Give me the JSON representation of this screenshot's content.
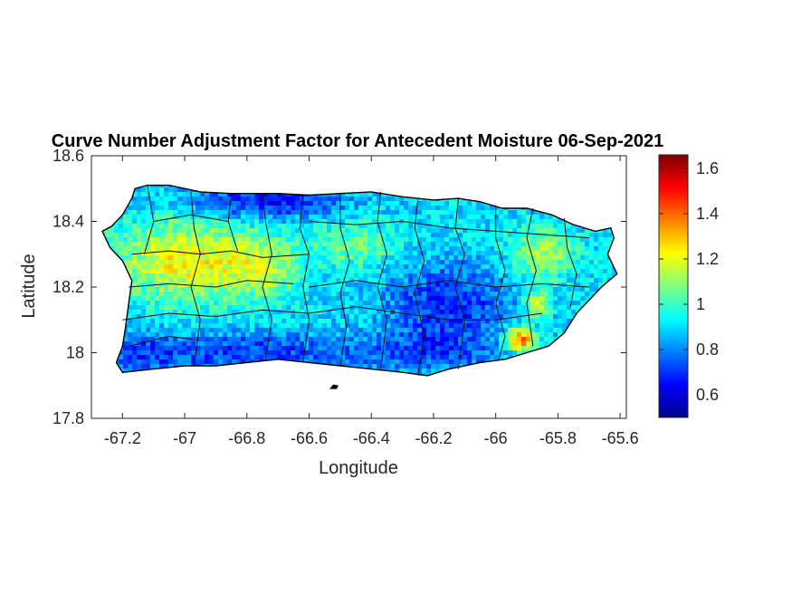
{
  "chart_data": {
    "type": "heatmap",
    "title": "Curve Number Adjustment Factor for Antecedent Moisture 06-Sep-2021",
    "xlabel": "Longitude",
    "ylabel": "Latitude",
    "xlim": [
      -67.3,
      -65.58
    ],
    "ylim": [
      17.8,
      18.6
    ],
    "x_ticks": [
      -67.2,
      -67,
      -66.8,
      -66.6,
      -66.4,
      -66.2,
      -66,
      -65.8,
      -65.6
    ],
    "x_tick_labels": [
      "-67.2",
      "-67",
      "-66.8",
      "-66.6",
      "-66.4",
      "-66.2",
      "-66",
      "-65.8",
      "-65.6"
    ],
    "y_ticks": [
      17.8,
      18,
      18.2,
      18.4,
      18.6
    ],
    "y_tick_labels": [
      "17.8",
      "18",
      "18.2",
      "18.4",
      "18.6"
    ],
    "colorbar": {
      "colormap": "jet",
      "limits": [
        0.5,
        1.66
      ],
      "ticks": [
        0.6,
        0.8,
        1,
        1.2,
        1.4,
        1.6
      ],
      "tick_labels": [
        "0.6",
        "0.8",
        "1",
        "1.2",
        "1.4",
        "1.6"
      ]
    },
    "grid": false,
    "region": "Puerto Rico",
    "spatial_pattern": [
      {
        "area": "west-central interior",
        "value": 1.2
      },
      {
        "area": "north-central coast",
        "value": 0.65
      },
      {
        "area": "south coast",
        "value": 0.7
      },
      {
        "area": "east-central interior",
        "value": 0.65
      },
      {
        "area": "northeast",
        "value": 1.05
      },
      {
        "area": "southeast hotspot",
        "value": 1.45
      }
    ]
  }
}
